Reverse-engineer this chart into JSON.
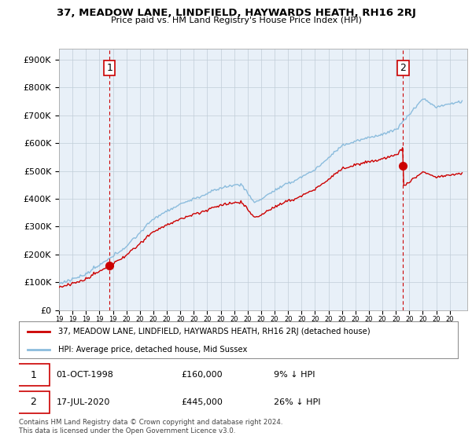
{
  "title": "37, MEADOW LANE, LINDFIELD, HAYWARDS HEATH, RH16 2RJ",
  "subtitle": "Price paid vs. HM Land Registry's House Price Index (HPI)",
  "ylabel_ticks": [
    "£0",
    "£100K",
    "£200K",
    "£300K",
    "£400K",
    "£500K",
    "£600K",
    "£700K",
    "£800K",
    "£900K"
  ],
  "ytick_values": [
    0,
    100000,
    200000,
    300000,
    400000,
    500000,
    600000,
    700000,
    800000,
    900000
  ],
  "ylim": [
    0,
    940000
  ],
  "sale1_year": 1998.75,
  "sale1_price": 160000,
  "sale2_year": 2020.54,
  "sale2_price": 445000,
  "hpi_color": "#8bbcdd",
  "price_color": "#cc0000",
  "vline_color": "#cc0000",
  "plot_bg_color": "#e8f0f8",
  "legend_label_price": "37, MEADOW LANE, LINDFIELD, HAYWARDS HEATH, RH16 2RJ (detached house)",
  "legend_label_hpi": "HPI: Average price, detached house, Mid Sussex",
  "footnote": "Contains HM Land Registry data © Crown copyright and database right 2024.\nThis data is licensed under the Open Government Licence v3.0.",
  "bg_color": "#ffffff",
  "grid_color": "#c0cdd8"
}
